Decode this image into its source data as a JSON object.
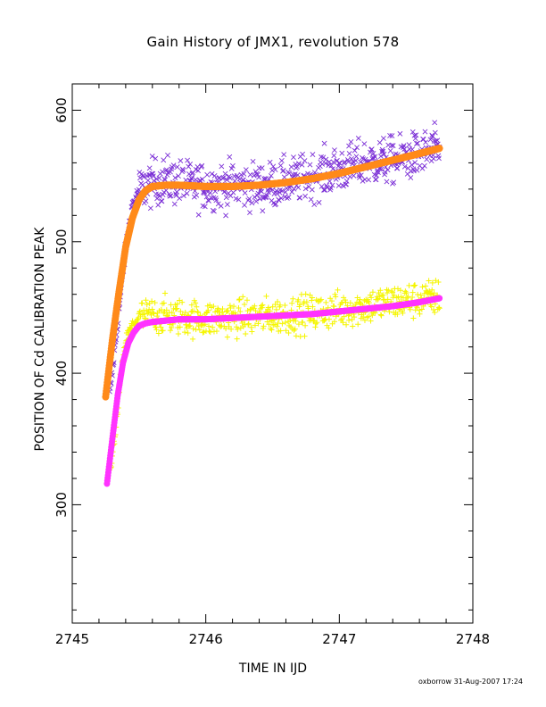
{
  "chart_data": {
    "type": "scatter",
    "title": "Gain History of JMX1, revolution 578",
    "xlabel": "TIME IN IJD",
    "ylabel": "POSITION OF Cd CALIBRATION PEAK",
    "xlim": [
      2745,
      2748
    ],
    "ylim": [
      210,
      620
    ],
    "xticks": [
      2745,
      2746,
      2747,
      2748
    ],
    "yticks": [
      300,
      400,
      500,
      600
    ],
    "grid": false,
    "legend": "none",
    "colors": {
      "upper_points": "#7b2fd6",
      "upper_fit": "#ff8a1a",
      "lower_points": "#f5f500",
      "lower_fit": "#ff33ff",
      "axes": "#000000"
    },
    "series": [
      {
        "marker": "x",
        "color": "#7b2fd6",
        "x": [
          2745.28,
          2745.3,
          2745.35,
          2745.4,
          2745.45,
          2745.5,
          2745.55,
          2745.6,
          2745.7,
          2745.8,
          2745.9,
          2746.0,
          2746.2,
          2746.4,
          2746.6,
          2746.8,
          2747.0,
          2747.2,
          2747.4,
          2747.6,
          2747.75
        ],
        "y": [
          383,
          400,
          448,
          495,
          528,
          538,
          542,
          545,
          547,
          545,
          543,
          542,
          543,
          542,
          545,
          550,
          555,
          560,
          562,
          566,
          570
        ],
        "spread": 14
      },
      {
        "marker": "line",
        "color": "#ff8a1a",
        "x": [
          2745.25,
          2745.3,
          2745.35,
          2745.4,
          2745.45,
          2745.5,
          2745.55,
          2745.6,
          2745.7,
          2745.8,
          2746.0,
          2746.2,
          2746.4,
          2746.6,
          2746.8,
          2747.0,
          2747.2,
          2747.4,
          2747.6,
          2747.75
        ],
        "y": [
          382,
          425,
          462,
          496,
          518,
          532,
          539,
          542,
          543,
          543,
          542,
          542,
          543,
          545,
          548,
          552,
          557,
          562,
          567,
          571
        ]
      },
      {
        "marker": "+",
        "color": "#f5f500",
        "x": [
          2745.28,
          2745.32,
          2745.36,
          2745.4,
          2745.45,
          2745.5,
          2745.6,
          2745.8,
          2746.0,
          2746.2,
          2746.4,
          2746.6,
          2746.8,
          2747.0,
          2747.2,
          2747.4,
          2747.6,
          2747.75
        ],
        "y": [
          325,
          350,
          395,
          425,
          437,
          442,
          444,
          443,
          441,
          442,
          443,
          444,
          446,
          448,
          451,
          454,
          456,
          458
        ],
        "spread": 11
      },
      {
        "marker": "line",
        "color": "#ff33ff",
        "x": [
          2745.26,
          2745.3,
          2745.34,
          2745.38,
          2745.42,
          2745.46,
          2745.5,
          2745.55,
          2745.6,
          2745.7,
          2745.8,
          2746.0,
          2746.2,
          2746.4,
          2746.6,
          2746.8,
          2747.0,
          2747.2,
          2747.4,
          2747.6,
          2747.75
        ],
        "y": [
          316,
          350,
          383,
          408,
          423,
          431,
          436,
          438,
          439,
          440,
          441,
          441,
          442,
          443,
          444,
          445,
          447,
          449,
          451,
          454,
          457
        ]
      }
    ]
  },
  "footer": "oxborrow 31-Aug-2007 17:24"
}
